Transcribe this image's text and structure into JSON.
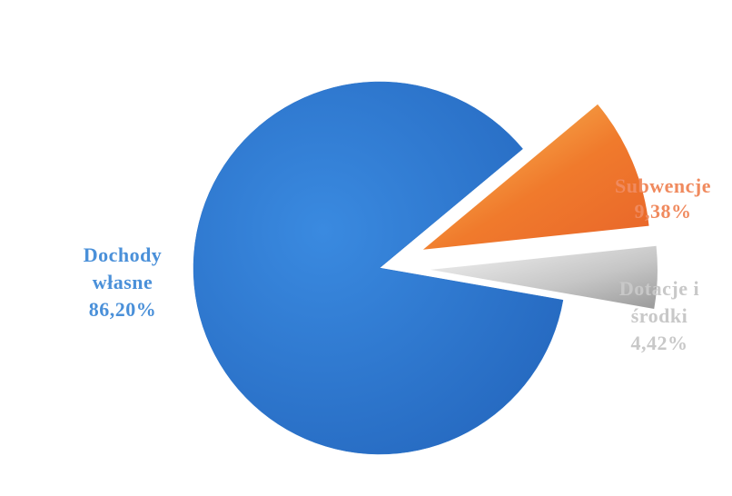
{
  "chart_data": {
    "type": "pie",
    "exploded": true,
    "slices": [
      {
        "label_lines": [
          "Dochody",
          "własne",
          "86,20%"
        ],
        "value": 86.2,
        "color": "#2e7bcf",
        "label_color": "#4a90d9"
      },
      {
        "label_lines": [
          "Subwencje",
          "9,38%"
        ],
        "value": 9.38,
        "color": "#f07a2c",
        "label_color": "#f08a5e"
      },
      {
        "label_lines": [
          "Dotacje i",
          "środki",
          "4,42%"
        ],
        "value": 4.42,
        "color": "#b9b9b9",
        "label_color": "#c8c8c8"
      }
    ]
  }
}
